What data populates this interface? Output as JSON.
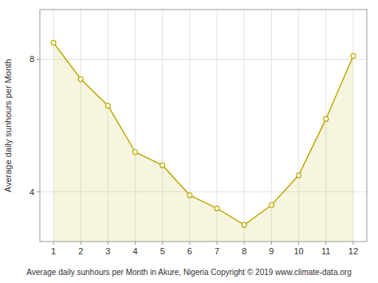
{
  "chart_data": {
    "type": "area",
    "x": [
      1,
      2,
      3,
      4,
      5,
      6,
      7,
      8,
      9,
      10,
      11,
      12
    ],
    "values": [
      8.5,
      7.4,
      6.6,
      5.2,
      4.8,
      3.9,
      3.5,
      3.0,
      3.6,
      4.5,
      6.2,
      8.1
    ],
    "color": "#BBAA00",
    "marker": "circle",
    "xlabel": "Average daily sunhours per Month in Akure, Nigeria Copyright © 2019 www.climate-data.org",
    "ylabel": "Average daily sunhours per Month",
    "xlim": [
      0.5,
      12.5
    ],
    "ylim": [
      2.5,
      9.5
    ],
    "xticks": [
      1,
      2,
      3,
      4,
      5,
      6,
      7,
      8,
      9,
      10,
      11,
      12
    ],
    "yticks": [
      4,
      8
    ],
    "grid": true
  }
}
